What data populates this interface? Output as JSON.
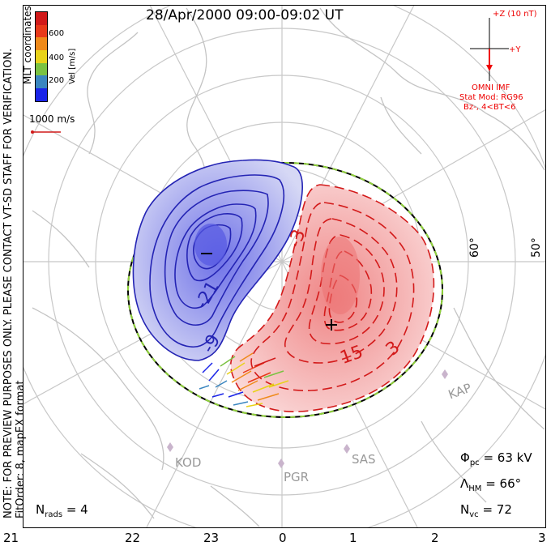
{
  "title": "28/Apr/2000 09:00-09:02 UT",
  "note_line1": "NOTE: FOR PREVIEW PURPOSES ONLY. PLEASE CONTACT VT-SD STAFF FOR VERIFICATION.",
  "note_line2": "FitOrder: 8, mapEX format",
  "coordinates_label": "MLT coordinates",
  "colorbar": {
    "label": "Vel [m/s]",
    "ticks": [
      "200",
      "400",
      "600"
    ],
    "colors": [
      "#1a24e8",
      "#3a86c0",
      "#7ac242",
      "#e8d21a",
      "#ef8a1a",
      "#e83a1a",
      "#d11a1a"
    ]
  },
  "vector_scale": "1000 m/s",
  "imf": {
    "z_label": "+Z (10 nT)",
    "y_label": "+Y",
    "source": "OMNI IMF",
    "stat_mod": "Stat Mod: RG96",
    "condition": "Bz-, 4<BT<6"
  },
  "mlt_ticks": [
    "21",
    "22",
    "23",
    "0",
    "1",
    "2",
    "3"
  ],
  "lat_labels": [
    "60°",
    "50°"
  ],
  "radars": [
    "KOD",
    "PGR",
    "SAS",
    "KAP"
  ],
  "contour_labels": {
    "neg": [
      "-21",
      "-9",
      "-3"
    ],
    "pos": [
      "15",
      "3"
    ]
  },
  "stats": {
    "n_rads_symbol": "N",
    "n_rads_sub": "rads",
    "n_rads_value": "= 4",
    "phi_symbol": "Φ",
    "phi_sub": "pc",
    "phi_value": "= 63 kV",
    "lambda_symbol": "Λ",
    "lambda_sub": "HM",
    "lambda_value": "= 66°",
    "nvc_symbol": "N",
    "nvc_sub": "vc",
    "nvc_value": "= 72"
  },
  "potential_extrema": {
    "min_symbol": "−",
    "max_symbol": "+"
  }
}
